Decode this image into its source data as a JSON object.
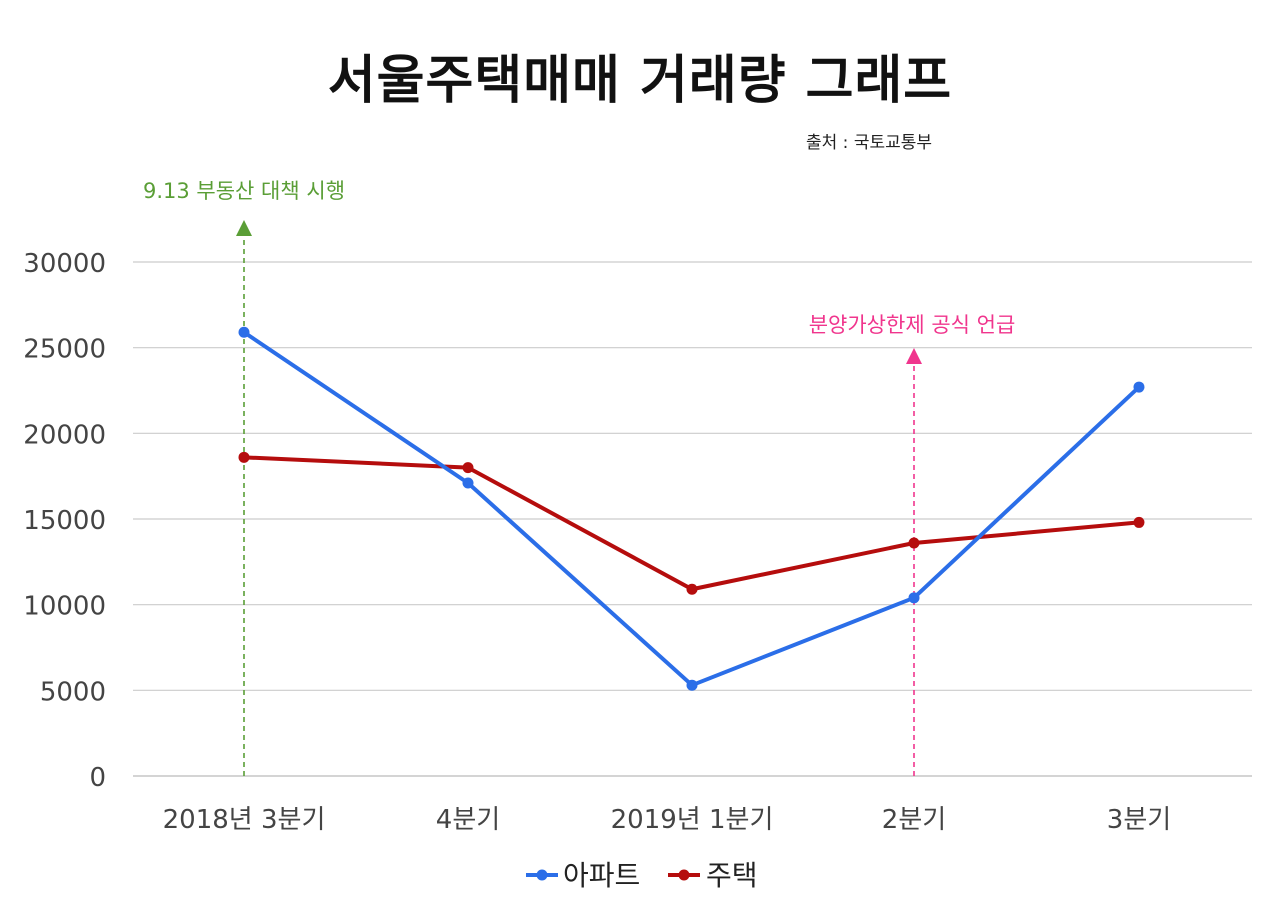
{
  "colors": {
    "apartment": "#2b6ee8",
    "house": "#b50d0d",
    "annotation1": "#5a9e36",
    "annotation2": "#f0358d",
    "grid": "#cccccc"
  },
  "chart_data": {
    "type": "line",
    "title": "서울주택매매 거래량 그래프",
    "source": "출처 : 국토교통부",
    "categories": [
      "2018년 3분기",
      "4분기",
      "2019년 1분기",
      "2분기",
      "3분기"
    ],
    "ylim": [
      0,
      30000
    ],
    "yticks": [
      "0",
      "5000",
      "10000",
      "15000",
      "20000",
      "25000",
      "30000"
    ],
    "series": [
      {
        "name": "아파트",
        "values": [
          25900,
          17100,
          5300,
          10400,
          22700
        ]
      },
      {
        "name": "주택",
        "values": [
          18600,
          18000,
          10900,
          13600,
          14800
        ]
      }
    ],
    "annotations": [
      {
        "text": "9.13 부동산 대책 시행",
        "category_index": 0
      },
      {
        "text": "분양가상한제 공식 언급",
        "category_index": 3
      }
    ],
    "legend_position": "bottom"
  }
}
